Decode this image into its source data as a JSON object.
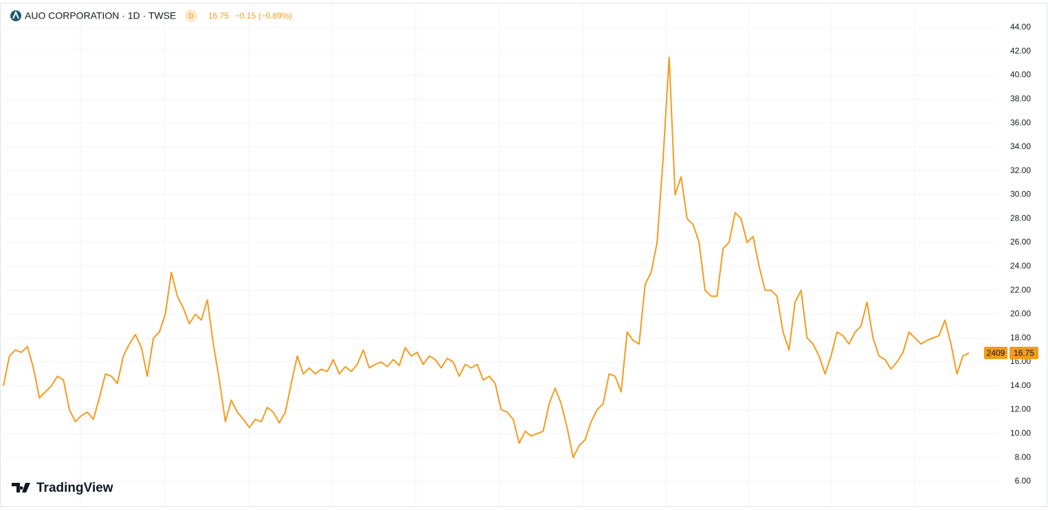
{
  "chart_data": {
    "type": "line",
    "title": "AUO CORPORATION · 1D · TWSE",
    "badge": "D",
    "last_price": 16.75,
    "change": "−0.15 (−0.89%)",
    "symbol_code": "2409",
    "watermark": "TradingView",
    "series": [
      {
        "color": "#f59a1b",
        "values": [
          14.0,
          16.5,
          17.0,
          16.8,
          17.3,
          15.5,
          13.0,
          13.5,
          14.0,
          14.8,
          14.5,
          12.0,
          11.0,
          11.5,
          11.8,
          11.2,
          13.0,
          15.0,
          14.8,
          14.2,
          16.5,
          17.5,
          18.3,
          17.2,
          14.8,
          18.0,
          18.5,
          20.0,
          23.5,
          21.5,
          20.5,
          19.2,
          20.0,
          19.5,
          21.2,
          17.5,
          14.5,
          11.0,
          12.8,
          11.8,
          11.2,
          10.5,
          11.2,
          11.0,
          12.2,
          11.8,
          10.9,
          11.8,
          14.2,
          16.5,
          15.0,
          15.5,
          15.0,
          15.4,
          15.2,
          16.2,
          15.0,
          15.6,
          15.2,
          15.8,
          17.0,
          15.5,
          15.8,
          16.0,
          15.6,
          16.2,
          15.7,
          17.2,
          16.5,
          16.8,
          15.8,
          16.5,
          16.2,
          15.5,
          16.3,
          16.0,
          14.8,
          15.8,
          15.5,
          15.8,
          14.5,
          14.8,
          14.2,
          12.0,
          11.8,
          11.2,
          9.2,
          10.2,
          9.8,
          10.0,
          10.2,
          12.5,
          13.8,
          12.5,
          10.5,
          8.0,
          9.0,
          9.5,
          11.0,
          12.0,
          12.5,
          15.0,
          14.8,
          13.5,
          18.5,
          17.8,
          17.5,
          22.5,
          23.5,
          26.0,
          33.0,
          41.5,
          30.0,
          31.5,
          28.0,
          27.5,
          26.0,
          22.0,
          21.5,
          21.5,
          25.5,
          26.0,
          28.5,
          28.0,
          26.0,
          26.5,
          24.0,
          22.0,
          22.0,
          21.5,
          18.5,
          17.0,
          21.0,
          22.0,
          18.0,
          17.5,
          16.5,
          15.0,
          16.5,
          18.5,
          18.2,
          17.5,
          18.5,
          19.0,
          21.0,
          18.0,
          16.5,
          16.2,
          15.4,
          16.0,
          16.8,
          18.5,
          18.0,
          17.5,
          17.8,
          18.0,
          18.2,
          19.5,
          17.5,
          15.0,
          16.5,
          16.75
        ]
      }
    ],
    "ylim": [
      4.04,
      46.01
    ],
    "yticks": [
      {
        "value": 6,
        "label": "6.00"
      },
      {
        "value": 8,
        "label": "8.00"
      },
      {
        "value": 10,
        "label": "10.00"
      },
      {
        "value": 12,
        "label": "12.00"
      },
      {
        "value": 14,
        "label": "14.00"
      },
      {
        "value": 16,
        "label": "16.00"
      },
      {
        "value": 18,
        "label": "18.00"
      },
      {
        "value": 20,
        "label": "20.00"
      },
      {
        "value": 22,
        "label": "22.00"
      },
      {
        "value": 24,
        "label": "24.00"
      },
      {
        "value": 26,
        "label": "26.00"
      },
      {
        "value": 28,
        "label": "28.00"
      },
      {
        "value": 30,
        "label": "30.00"
      },
      {
        "value": 32,
        "label": "32.00"
      },
      {
        "value": 34,
        "label": "34.00"
      },
      {
        "value": 36,
        "label": "36.00"
      },
      {
        "value": 38,
        "label": "38.00"
      },
      {
        "value": 40,
        "label": "40.00"
      },
      {
        "value": 42,
        "label": "42.00"
      },
      {
        "value": 44,
        "label": "44.00"
      }
    ],
    "grid": true
  }
}
